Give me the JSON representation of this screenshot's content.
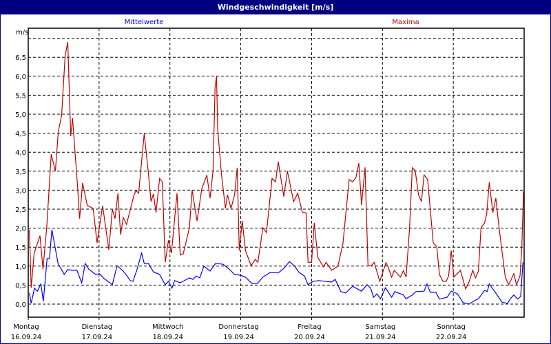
{
  "window": {
    "title": "Windgeschwindigkeit [m/s]"
  },
  "chart_data": {
    "type": "line",
    "title": "Windgeschwindigkeit [m/s]",
    "ylabel": "m/s",
    "ylim": [
      -0.5,
      7.5
    ],
    "yticks": [
      "0,0",
      "0,5",
      "1,0",
      "1,5",
      "2,0",
      "2,5",
      "3,0",
      "3,5",
      "4,0",
      "4,5",
      "5,0",
      "5,5",
      "6,0",
      "6,5"
    ],
    "ytick_values": [
      0,
      0.5,
      1,
      1.5,
      2,
      2.5,
      3,
      3.5,
      4,
      4.5,
      5,
      5.5,
      6,
      6.5
    ],
    "grid": true,
    "x_unit": "hours since Montag 16.09.24 00:00",
    "xlim": [
      0,
      168
    ],
    "xticks": [
      {
        "day": "Montag",
        "date": "16.09.24"
      },
      {
        "day": "Dienstag",
        "date": "17.09.24"
      },
      {
        "day": "Mittwoch",
        "date": "18.09.24"
      },
      {
        "day": "Donnerstag",
        "date": "19.09.24"
      },
      {
        "day": "Freitag",
        "date": "20.09.24"
      },
      {
        "day": "Samstag",
        "date": "21.09.24"
      },
      {
        "day": "Sonntag",
        "date": "22.09.24"
      }
    ],
    "legend": "top",
    "series": [
      {
        "name": "Mittelwerte",
        "color": "#0000ff",
        "points": [
          [
            0.4,
            0.29
          ],
          [
            1,
            0.02
          ],
          [
            2.1,
            0.42
          ],
          [
            3.1,
            0.34
          ],
          [
            4.3,
            0.53
          ],
          [
            5.1,
            0.07
          ],
          [
            6.4,
            1.2
          ],
          [
            7.2,
            1.2
          ],
          [
            8,
            1.96
          ],
          [
            10.1,
            1.07
          ],
          [
            12.2,
            0.78
          ],
          [
            13.4,
            0.91
          ],
          [
            14.8,
            0.89
          ],
          [
            16.5,
            0.89
          ],
          [
            18.1,
            0.56
          ],
          [
            19.3,
            1.07
          ],
          [
            20.5,
            0.92
          ],
          [
            22.8,
            0.78
          ],
          [
            24.2,
            0.8
          ],
          [
            25.4,
            0.69
          ],
          [
            28.5,
            0.51
          ],
          [
            30.1,
            1.01
          ],
          [
            32.2,
            0.87
          ],
          [
            34.6,
            0.62
          ],
          [
            35.5,
            0.6
          ],
          [
            36.9,
            0.92
          ],
          [
            38.4,
            1.34
          ],
          [
            39.3,
            1.07
          ],
          [
            40.7,
            1.07
          ],
          [
            42.4,
            0.85
          ],
          [
            44.5,
            0.78
          ],
          [
            46.4,
            0.51
          ],
          [
            47.5,
            0.6
          ],
          [
            48.7,
            0.42
          ],
          [
            49.6,
            0.62
          ],
          [
            51.5,
            0.56
          ],
          [
            54.6,
            0.69
          ],
          [
            55.8,
            0.65
          ],
          [
            56.9,
            0.74
          ],
          [
            58.1,
            0.69
          ],
          [
            59.5,
            1.0
          ],
          [
            61.6,
            0.87
          ],
          [
            63.5,
            1.07
          ],
          [
            65.9,
            1.05
          ],
          [
            67.5,
            0.96
          ],
          [
            69.9,
            0.78
          ],
          [
            71.8,
            0.76
          ],
          [
            73.6,
            0.71
          ],
          [
            75.8,
            0.54
          ],
          [
            77.6,
            0.54
          ],
          [
            79.5,
            0.71
          ],
          [
            81.9,
            0.83
          ],
          [
            84.7,
            0.82
          ],
          [
            86.6,
            0.94
          ],
          [
            88.5,
            1.12
          ],
          [
            90.1,
            1.01
          ],
          [
            91.8,
            0.83
          ],
          [
            93.6,
            0.74
          ],
          [
            94.8,
            0.51
          ],
          [
            96.5,
            0.6
          ],
          [
            98.4,
            0.62
          ],
          [
            102.8,
            0.58
          ],
          [
            104,
            0.65
          ],
          [
            105.9,
            0.33
          ],
          [
            107.5,
            0.29
          ],
          [
            109.9,
            0.47
          ],
          [
            112.9,
            0.34
          ],
          [
            114.8,
            0.51
          ],
          [
            116,
            0.42
          ],
          [
            117,
            0.18
          ],
          [
            118.1,
            0.27
          ],
          [
            119.3,
            0.14
          ],
          [
            121,
            0.43
          ],
          [
            123.1,
            0.18
          ],
          [
            124.2,
            0.33
          ],
          [
            127.1,
            0.24
          ],
          [
            128,
            0.14
          ],
          [
            130.1,
            0.24
          ],
          [
            131.3,
            0.33
          ],
          [
            134.1,
            0.34
          ],
          [
            135.1,
            0.53
          ],
          [
            136.2,
            0.31
          ],
          [
            138.1,
            0.31
          ],
          [
            139.3,
            0.13
          ],
          [
            141.9,
            0.18
          ],
          [
            143.3,
            0.34
          ],
          [
            145.4,
            0.27
          ],
          [
            147.3,
            0.04
          ],
          [
            149.4,
            0.0
          ],
          [
            151.1,
            0.09
          ],
          [
            152.5,
            0.14
          ],
          [
            154.6,
            0.36
          ],
          [
            155.5,
            0.33
          ],
          [
            156.2,
            0.53
          ],
          [
            158.4,
            0.29
          ],
          [
            160.5,
            0.05
          ],
          [
            162.4,
            0.02
          ],
          [
            163.3,
            0.14
          ],
          [
            164.5,
            0.24
          ],
          [
            165.8,
            0.13
          ],
          [
            166.8,
            0.2
          ],
          [
            167.6,
            1.1
          ]
        ]
      },
      {
        "name": "Maxima",
        "color": "#c00000",
        "points": [
          [
            0.4,
            1.96
          ],
          [
            1,
            0.43
          ],
          [
            2,
            1.34
          ],
          [
            4,
            1.8
          ],
          [
            5,
            0.92
          ],
          [
            6.3,
            2.06
          ],
          [
            7.8,
            3.95
          ],
          [
            9.2,
            3.5
          ],
          [
            10.2,
            4.55
          ],
          [
            11.3,
            4.96
          ],
          [
            12.5,
            6.54
          ],
          [
            13.4,
            6.9
          ],
          [
            14.4,
            4.42
          ],
          [
            15,
            4.9
          ],
          [
            16.7,
            3.1
          ],
          [
            17.4,
            2.25
          ],
          [
            18.4,
            3.19
          ],
          [
            20,
            2.6
          ],
          [
            22,
            2.52
          ],
          [
            23.3,
            1.61
          ],
          [
            25.2,
            2.59
          ],
          [
            27.3,
            1.43
          ],
          [
            28.5,
            2.5
          ],
          [
            29.4,
            2.25
          ],
          [
            30.4,
            2.92
          ],
          [
            31.3,
            1.83
          ],
          [
            32.2,
            2.28
          ],
          [
            33.3,
            2.1
          ],
          [
            35.8,
            2.86
          ],
          [
            36.5,
            2.99
          ],
          [
            37.4,
            2.92
          ],
          [
            39.3,
            4.49
          ],
          [
            40.7,
            3.46
          ],
          [
            41.6,
            2.7
          ],
          [
            42.4,
            2.9
          ],
          [
            43.3,
            2.41
          ],
          [
            44.5,
            3.31
          ],
          [
            45.4,
            3.22
          ],
          [
            46.4,
            1.1
          ],
          [
            47.5,
            1.68
          ],
          [
            48.5,
            1.34
          ],
          [
            50.4,
            2.92
          ],
          [
            51.5,
            1.29
          ],
          [
            52.5,
            1.32
          ],
          [
            54.6,
            2.01
          ],
          [
            55.5,
            3.0
          ],
          [
            57.2,
            2.19
          ],
          [
            58.8,
            3.04
          ],
          [
            60.5,
            3.4
          ],
          [
            61.6,
            2.79
          ],
          [
            62.6,
            3.51
          ],
          [
            63.3,
            5.72
          ],
          [
            63.8,
            6.0
          ],
          [
            64.2,
            4.6
          ],
          [
            65.4,
            3.46
          ],
          [
            66.8,
            2.52
          ],
          [
            67.5,
            2.88
          ],
          [
            68.7,
            2.52
          ],
          [
            69.9,
            2.88
          ],
          [
            70.8,
            3.59
          ],
          [
            71.5,
            1.41
          ],
          [
            72.5,
            2.19
          ],
          [
            73.6,
            1.41
          ],
          [
            75.5,
            1.01
          ],
          [
            76.9,
            1.18
          ],
          [
            77.8,
            1.1
          ],
          [
            79.5,
            2.01
          ],
          [
            80.7,
            1.88
          ],
          [
            82.6,
            3.31
          ],
          [
            83.8,
            3.22
          ],
          [
            84.7,
            3.75
          ],
          [
            86.6,
            2.83
          ],
          [
            87.8,
            3.5
          ],
          [
            89.9,
            2.7
          ],
          [
            91.3,
            2.92
          ],
          [
            92.9,
            2.41
          ],
          [
            94.1,
            2.41
          ],
          [
            94.8,
            1.1
          ],
          [
            96,
            1.1
          ],
          [
            96.9,
            2.14
          ],
          [
            98.1,
            1.23
          ],
          [
            100,
            0.98
          ],
          [
            100.9,
            1.1
          ],
          [
            102.8,
            0.89
          ],
          [
            104.9,
            1.0
          ],
          [
            106.6,
            1.59
          ],
          [
            108.7,
            3.28
          ],
          [
            109.9,
            3.22
          ],
          [
            111,
            3.33
          ],
          [
            112,
            3.71
          ],
          [
            112.9,
            2.61
          ],
          [
            114.1,
            3.6
          ],
          [
            115.1,
            1.01
          ],
          [
            116.2,
            1.01
          ],
          [
            117.2,
            1.1
          ],
          [
            119.1,
            0.6
          ],
          [
            121.2,
            1.09
          ],
          [
            121.9,
            0.98
          ],
          [
            123.1,
            0.71
          ],
          [
            124,
            0.89
          ],
          [
            126.1,
            0.71
          ],
          [
            127.1,
            0.88
          ],
          [
            128,
            0.71
          ],
          [
            129.2,
            2.01
          ],
          [
            130.1,
            3.59
          ],
          [
            131.1,
            3.51
          ],
          [
            132.2,
            2.88
          ],
          [
            133.2,
            2.7
          ],
          [
            134.1,
            3.4
          ],
          [
            135.3,
            3.28
          ],
          [
            137.2,
            1.61
          ],
          [
            138.4,
            1.52
          ],
          [
            139.3,
            0.78
          ],
          [
            140.5,
            0.6
          ],
          [
            141.6,
            0.6
          ],
          [
            142.4,
            0.74
          ],
          [
            143.3,
            1.41
          ],
          [
            144.2,
            0.71
          ],
          [
            146.4,
            0.89
          ],
          [
            148.2,
            0.4
          ],
          [
            149.4,
            0.6
          ],
          [
            150.6,
            0.89
          ],
          [
            151.5,
            0.69
          ],
          [
            152.5,
            0.87
          ],
          [
            153.4,
            2.01
          ],
          [
            154.6,
            2.14
          ],
          [
            155.3,
            2.37
          ],
          [
            156.2,
            3.21
          ],
          [
            157.4,
            2.41
          ],
          [
            158.4,
            2.79
          ],
          [
            159.5,
            2.01
          ],
          [
            161.6,
            0.71
          ],
          [
            162.8,
            0.51
          ],
          [
            164.5,
            0.8
          ],
          [
            165.4,
            0.51
          ],
          [
            166.6,
            0.74
          ],
          [
            167.2,
            1.47
          ],
          [
            167.8,
            2.97
          ]
        ]
      }
    ]
  }
}
